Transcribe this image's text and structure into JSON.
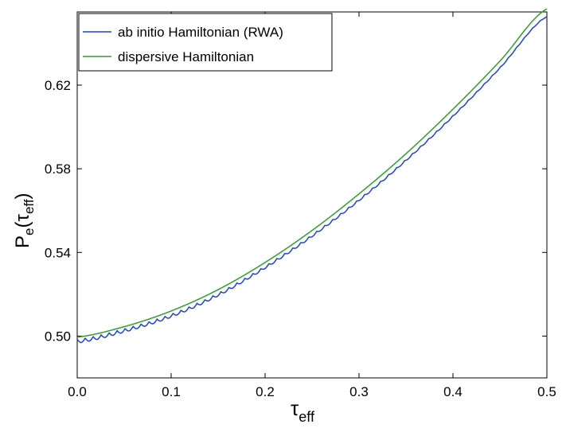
{
  "chart_data": {
    "type": "line",
    "xlabel": {
      "main": "τ",
      "sub": "eff"
    },
    "ylabel": {
      "main": "P",
      "sub": "e",
      "arg_main": "(τ",
      "arg_sub": "eff",
      "close": ")"
    },
    "xlim": [
      0.0,
      0.5
    ],
    "ylim": [
      0.48,
      0.655
    ],
    "xticks": [
      0.0,
      0.1,
      0.2,
      0.3,
      0.4,
      0.5
    ],
    "xtick_labels": [
      "0.0",
      "0.1",
      "0.2",
      "0.3",
      "0.4",
      "0.5"
    ],
    "yticks": [
      0.5,
      0.54,
      0.58,
      0.62
    ],
    "ytick_labels": [
      "0.50",
      "0.54",
      "0.58",
      "0.62"
    ],
    "grid": false,
    "legend_position": "top-left",
    "series": [
      {
        "name": "ab initio Hamiltonian (RWA)",
        "color": "#1f3fd6",
        "x": [
          0.0,
          0.05,
          0.1,
          0.15,
          0.2,
          0.25,
          0.3,
          0.35,
          0.4,
          0.45,
          0.5
        ],
        "y": [
          0.4985,
          0.5035,
          0.5105,
          0.5205,
          0.5335,
          0.5485,
          0.5655,
          0.5845,
          0.6055,
          0.6285,
          0.653
        ],
        "oscillation": {
          "amplitude": 0.0018,
          "period": 0.0085,
          "damping_to": 0.0003
        }
      },
      {
        "name": "dispersive Hamiltonian",
        "color": "#2ca02c",
        "x": [
          0.0,
          0.05,
          0.1,
          0.15,
          0.2,
          0.25,
          0.3,
          0.35,
          0.4,
          0.45,
          0.5
        ],
        "y": [
          0.4995,
          0.5045,
          0.512,
          0.5222,
          0.5352,
          0.5505,
          0.568,
          0.5872,
          0.6085,
          0.6315,
          0.6565
        ]
      }
    ]
  }
}
